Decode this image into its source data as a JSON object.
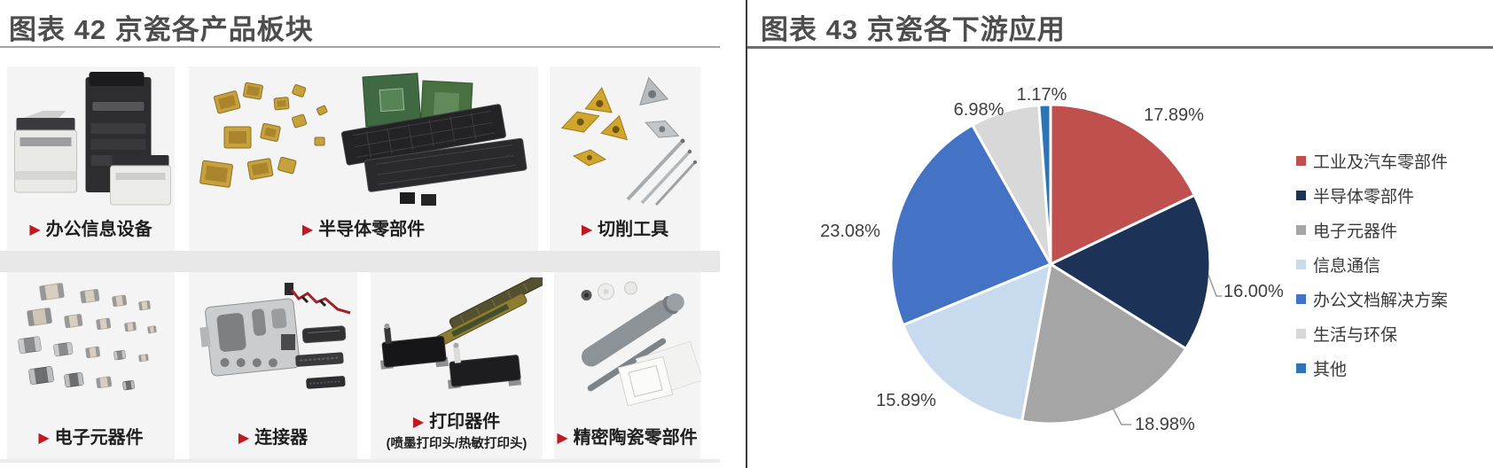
{
  "left_panel": {
    "title": "图表 42 京瓷各产品板块",
    "bullet": "▶",
    "cells": [
      {
        "label": "办公信息设备"
      },
      {
        "label": "半导体零部件"
      },
      {
        "label": "切削工具"
      },
      {
        "label": "电子元器件"
      },
      {
        "label": "连接器"
      },
      {
        "label": "打印器件",
        "sublabel": "(喷墨打印头/热敏打印头)"
      },
      {
        "label": "精密陶瓷零部件"
      }
    ]
  },
  "right_panel": {
    "title": "图表 43 京瓷各下游应用"
  },
  "chart_data": {
    "type": "pie",
    "title": "图表 43 京瓷各下游应用",
    "categories": [
      "工业及汽车零部件",
      "半导体零部件",
      "电子元器件",
      "信息通信",
      "办公文档解决方案",
      "生活与环保",
      "其他"
    ],
    "values": [
      17.89,
      16.0,
      18.98,
      15.89,
      23.08,
      6.98,
      1.17
    ],
    "labels": [
      "17.89%",
      "16.00%",
      "18.98%",
      "15.89%",
      "23.08%",
      "6.98%",
      "1.17%"
    ],
    "colors": [
      "#C0504D",
      "#1C3257",
      "#A5A5A5",
      "#C7DAEE",
      "#4472C4",
      "#D8D8D8",
      "#2E75B6"
    ],
    "start_angle": 0,
    "direction": "clockwise",
    "legend_position": "right",
    "slice_border_color": "#ffffff"
  }
}
